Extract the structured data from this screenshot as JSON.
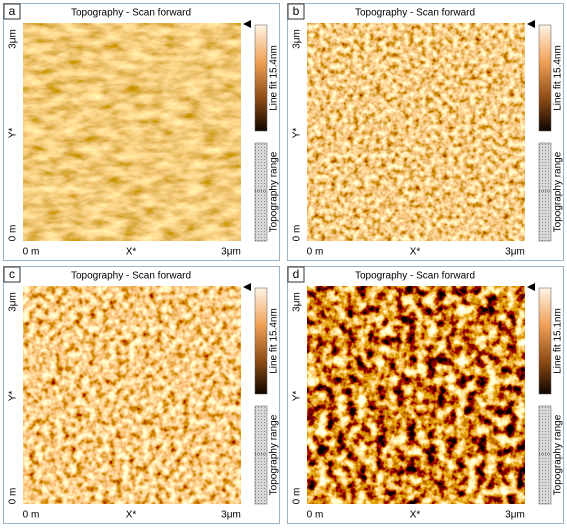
{
  "panels": [
    {
      "label": "a",
      "title": "Topography - Scan forward",
      "y_top": "3μm",
      "y_axis": "Y*",
      "y_bottom": "0 m",
      "x_left": "0 m",
      "x_axis": "X*",
      "x_right": "3μm",
      "colorbar_label": "Line fit 15.4nm",
      "range_label": "Topography range"
    },
    {
      "label": "b",
      "title": "Topography - Scan forward",
      "y_top": "3μm",
      "y_axis": "Y*",
      "y_bottom": "0 m",
      "x_left": "0 m",
      "x_axis": "X*",
      "x_right": "3μm",
      "colorbar_label": "Line fit 15.4nm",
      "range_label": "Topography range"
    },
    {
      "label": "c",
      "title": "Topography - Scan forward",
      "y_top": "3μm",
      "y_axis": "Y*",
      "y_bottom": "0 m",
      "x_left": "0 m",
      "x_axis": "X*",
      "x_right": "3μm",
      "colorbar_label": "Line fit 15.4nm",
      "range_label": "Topography range"
    },
    {
      "label": "d",
      "title": "Topography - Scan forward",
      "y_top": "3μm",
      "y_axis": "Y*",
      "y_bottom": "0 m",
      "x_left": "0 m",
      "x_axis": "X*",
      "x_right": "3μm",
      "colorbar_label": "Line fit 15.1nm",
      "range_label": "Topography range"
    }
  ]
}
